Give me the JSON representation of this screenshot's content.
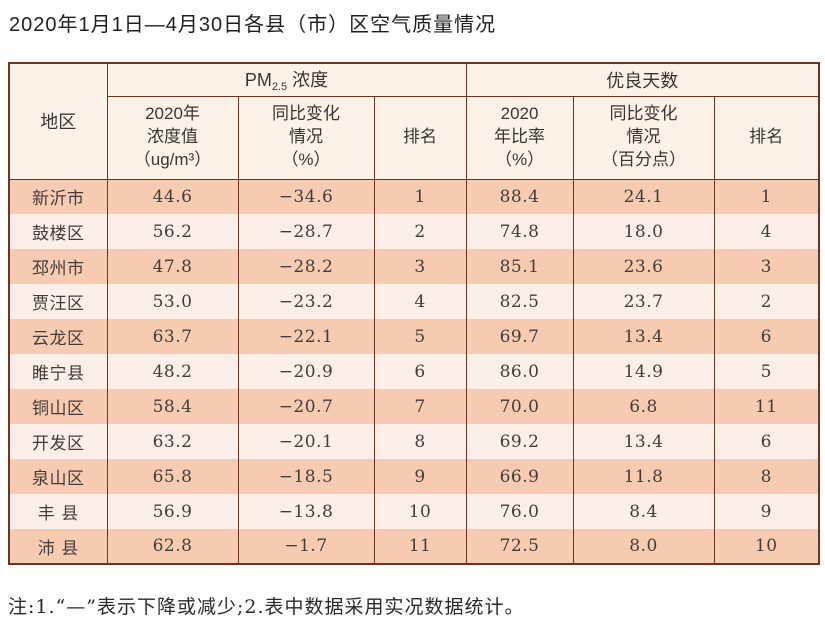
{
  "page": {
    "title": "2020年1月1日—4月30日各县（市）区空气质量情况",
    "footnote": "注:1.“—”表示下降或减少;2.表中数据采用实况数据统计。"
  },
  "colors": {
    "border": "#6e3322",
    "header_bg": "#fdf2e7",
    "stripe_dark": "#f7cbb2",
    "stripe_light": "#fcefe7",
    "text": "#453c38"
  },
  "table": {
    "corner_header": "地区",
    "group_headers": {
      "pm_prefix": "PM",
      "pm_sub": "2.5",
      "pm_suffix": " 浓度",
      "good_days": "优良天数"
    },
    "sub_headers": [
      "2020年\n浓度值\n（ug/m³）",
      "同比变化\n情况\n（%）",
      "排名",
      "2020\n年比率\n（%）",
      "同比变化\n情况\n（百分点）",
      "排名"
    ],
    "rows": [
      {
        "region": "新沂市",
        "values": [
          "44.6",
          "−34.6",
          "1",
          "88.4",
          "24.1",
          "1"
        ]
      },
      {
        "region": "鼓楼区",
        "values": [
          "56.2",
          "−28.7",
          "2",
          "74.8",
          "18.0",
          "4"
        ]
      },
      {
        "region": "邳州市",
        "values": [
          "47.8",
          "−28.2",
          "3",
          "85.1",
          "23.6",
          "3"
        ]
      },
      {
        "region": "贾汪区",
        "values": [
          "53.0",
          "−23.2",
          "4",
          "82.5",
          "23.7",
          "2"
        ]
      },
      {
        "region": "云龙区",
        "values": [
          "63.7",
          "−22.1",
          "5",
          "69.7",
          "13.4",
          "6"
        ]
      },
      {
        "region": "睢宁县",
        "values": [
          "48.2",
          "−20.9",
          "6",
          "86.0",
          "14.9",
          "5"
        ]
      },
      {
        "region": "铜山区",
        "values": [
          "58.4",
          "−20.7",
          "7",
          "70.0",
          "6.8",
          "11"
        ]
      },
      {
        "region": "开发区",
        "values": [
          "63.2",
          "−20.1",
          "8",
          "69.2",
          "13.4",
          "6"
        ]
      },
      {
        "region": "泉山区",
        "values": [
          "65.8",
          "−18.5",
          "9",
          "66.9",
          "11.8",
          "8"
        ]
      },
      {
        "region": "丰  县",
        "values": [
          "56.9",
          "−13.8",
          "10",
          "76.0",
          "8.4",
          "9"
        ]
      },
      {
        "region": "沛  县",
        "values": [
          "62.8",
          "−1.7",
          "11",
          "72.5",
          "8.0",
          "10"
        ]
      }
    ]
  }
}
